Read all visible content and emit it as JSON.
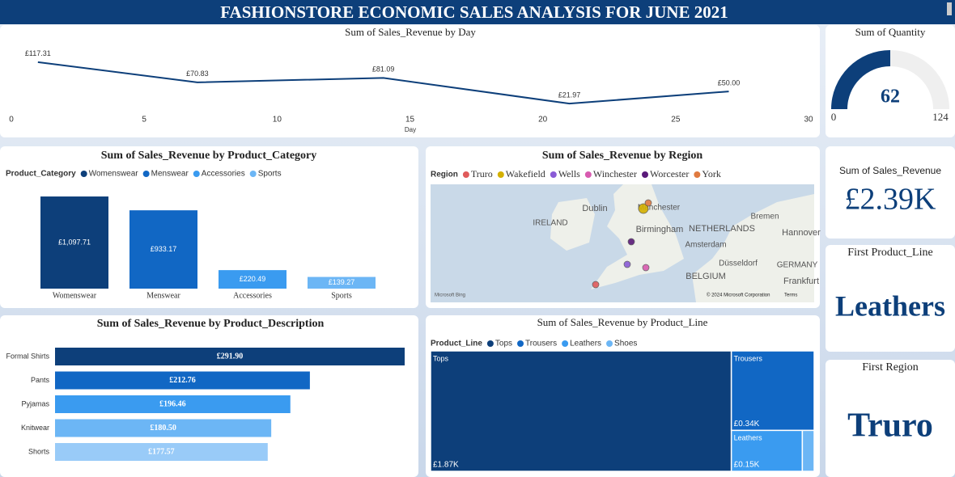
{
  "title": "FASHIONSTORE ECONOMIC SALES ANALYSIS FOR JUNE 2021",
  "chart_data": [
    {
      "type": "line",
      "title": "Sum of Sales_Revenue by Day",
      "x_label": "Day",
      "x": [
        1,
        7,
        14,
        21,
        27
      ],
      "values": [
        117.31,
        70.83,
        81.09,
        21.97,
        50.0
      ],
      "value_labels": [
        "£117.31",
        "£70.83",
        "£81.09",
        "£21.97",
        "£50.00"
      ],
      "xlim": [
        0,
        30
      ],
      "xticks": [
        0,
        5,
        10,
        15,
        20,
        25,
        30
      ],
      "ylim": [
        0,
        130
      ],
      "color": "#0d3f7a"
    },
    {
      "type": "bar",
      "title": "Sum of Sales_Revenue by Product_Category",
      "legend_title": "Product_Category",
      "categories": [
        "Womenswear",
        "Menswear",
        "Accessories",
        "Sports"
      ],
      "values": [
        1097.71,
        933.17,
        220.49,
        139.27
      ],
      "value_labels": [
        "£1,097.71",
        "£933.17",
        "£220.49",
        "£139.27"
      ],
      "colors": [
        "#0d3f7a",
        "#1167c4",
        "#3a9bf0",
        "#6cb6f5"
      ],
      "ylim": [
        0,
        1100
      ]
    },
    {
      "type": "map",
      "title": "Sum of Sales_Revenue by Region",
      "legend_title": "Region",
      "categories": [
        "Truro",
        "Wakefield",
        "Wells",
        "Winchester",
        "Worcester",
        "York"
      ],
      "colors": [
        "#e05b5b",
        "#d4b000",
        "#8a5bd6",
        "#d85bb0",
        "#5a1a7a",
        "#e07a40"
      ],
      "place_labels": [
        "IRELAND",
        "Dublin",
        "Manchester",
        "Birmingham",
        "Amsterdam",
        "NETHERLANDS",
        "Bremen",
        "Hannover",
        "Düsseldorf",
        "BELGIUM",
        "GERMANY",
        "Frankfurt"
      ],
      "attribution": [
        "Microsoft Bing",
        "© 2024 Microsoft Corporation",
        "Terms"
      ]
    },
    {
      "type": "hbar",
      "title": "Sum of Sales_Revenue by Product_Description",
      "categories": [
        "Formal Shirts",
        "Pants",
        "Pyjamas",
        "Knitwear",
        "Shorts"
      ],
      "values": [
        291.9,
        212.76,
        196.46,
        180.5,
        177.57
      ],
      "value_labels": [
        "£291.90",
        "£212.76",
        "£196.46",
        "£180.50",
        "£177.57"
      ],
      "colors": [
        "#0d3f7a",
        "#1167c4",
        "#3a9bf0",
        "#6cb6f5",
        "#99cbf8"
      ],
      "xlim": [
        0,
        300
      ]
    },
    {
      "type": "treemap",
      "title": "Sum of Sales_Revenue by Product_Line",
      "legend_title": "Product_Line",
      "categories": [
        "Tops",
        "Trousers",
        "Leathers",
        "Shoes"
      ],
      "values": [
        1870,
        340,
        150,
        25
      ],
      "value_labels": [
        "£1.87K",
        "£0.34K",
        "£0.15K",
        null
      ],
      "colors": [
        "#0d3f7a",
        "#1167c4",
        "#3a9bf0",
        "#6cb6f5"
      ]
    },
    {
      "type": "gauge",
      "title": "Sum of Quantity",
      "value": 62,
      "min": 0,
      "max": 124,
      "color": "#0d3f7a"
    }
  ],
  "cards": [
    {
      "label": "Sum of Sales_Revenue",
      "value": "£2.39K"
    },
    {
      "label": "First Product_Line",
      "value": "Leathers"
    },
    {
      "label": "First Region",
      "value": "Truro"
    }
  ]
}
